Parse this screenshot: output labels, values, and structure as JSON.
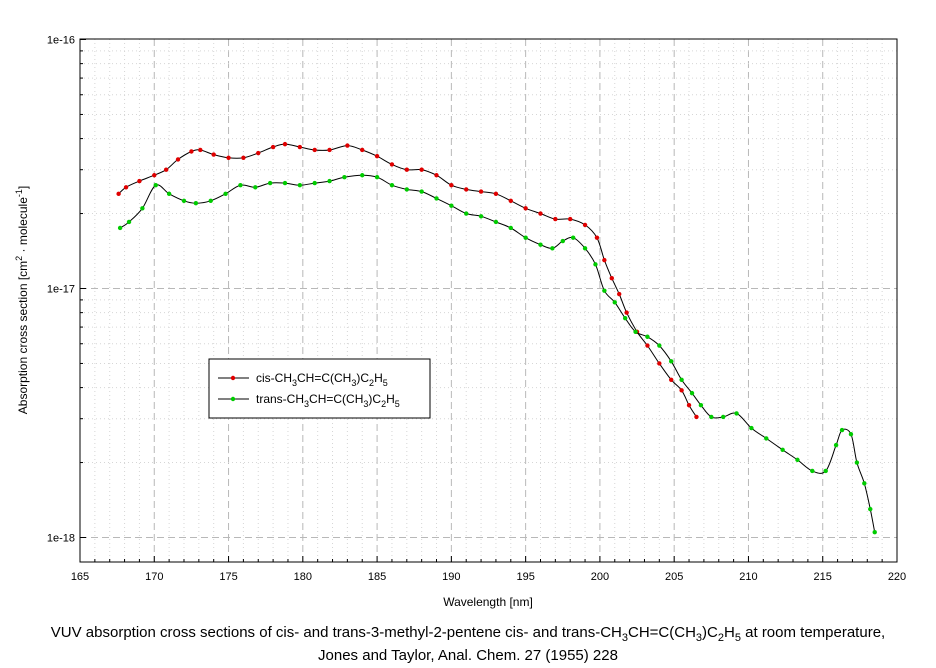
{
  "chart_data": {
    "type": "line",
    "xlabel": "Wavelength [nm]",
    "ylabel": "Absorption cross section [cm^2 · molecule^-1]",
    "x_scale": "linear",
    "y_scale": "log",
    "xlim": [
      165,
      220
    ],
    "ylim": [
      1e-18,
      1e-16
    ],
    "x_ticks": [
      165,
      170,
      175,
      180,
      185,
      190,
      195,
      200,
      205,
      210,
      215,
      220
    ],
    "y_tick_labels": [
      "1e-16",
      "1e-17",
      "1e-18"
    ],
    "grid": true,
    "legend_position": "center-left",
    "series": [
      {
        "name": "cis-CH3CH=C(CH3)C2H5",
        "color": "#e00000",
        "points": [
          [
            167.6,
            2.4e-17
          ],
          [
            168.1,
            2.55e-17
          ],
          [
            169.0,
            2.7e-17
          ],
          [
            170.0,
            2.85e-17
          ],
          [
            170.8,
            3e-17
          ],
          [
            171.6,
            3.3e-17
          ],
          [
            172.5,
            3.55e-17
          ],
          [
            173.1,
            3.6e-17
          ],
          [
            174.0,
            3.45e-17
          ],
          [
            175.0,
            3.35e-17
          ],
          [
            176.0,
            3.35e-17
          ],
          [
            177.0,
            3.5e-17
          ],
          [
            178.0,
            3.7e-17
          ],
          [
            178.8,
            3.8e-17
          ],
          [
            179.8,
            3.7e-17
          ],
          [
            180.8,
            3.6e-17
          ],
          [
            181.8,
            3.6e-17
          ],
          [
            183.0,
            3.75e-17
          ],
          [
            184.0,
            3.6e-17
          ],
          [
            185.0,
            3.4e-17
          ],
          [
            186.0,
            3.15e-17
          ],
          [
            187.0,
            3e-17
          ],
          [
            188.0,
            3e-17
          ],
          [
            189.0,
            2.85e-17
          ],
          [
            190.0,
            2.6e-17
          ],
          [
            191.0,
            2.5e-17
          ],
          [
            192.0,
            2.45e-17
          ],
          [
            193.0,
            2.4e-17
          ],
          [
            194.0,
            2.25e-17
          ],
          [
            195.0,
            2.1e-17
          ],
          [
            196.0,
            2e-17
          ],
          [
            197.0,
            1.9e-17
          ],
          [
            198.0,
            1.9e-17
          ],
          [
            199.0,
            1.8e-17
          ],
          [
            199.8,
            1.6e-17
          ],
          [
            200.3,
            1.3e-17
          ],
          [
            200.8,
            1.1e-17
          ],
          [
            201.3,
            9.5e-18
          ],
          [
            201.8,
            8e-18
          ],
          [
            202.5,
            6.7e-18
          ],
          [
            203.2,
            5.9e-18
          ],
          [
            204.0,
            5e-18
          ],
          [
            204.8,
            4.3e-18
          ],
          [
            205.5,
            3.9e-18
          ],
          [
            206.0,
            3.4e-18
          ],
          [
            206.5,
            3.05e-18
          ]
        ]
      },
      {
        "name": "trans-CH3CH=C(CH3)C2H5",
        "color": "#00cc00",
        "points": [
          [
            167.7,
            1.75e-17
          ],
          [
            168.3,
            1.85e-17
          ],
          [
            169.2,
            2.1e-17
          ],
          [
            170.1,
            2.6e-17
          ],
          [
            171.0,
            2.4e-17
          ],
          [
            172.0,
            2.25e-17
          ],
          [
            172.8,
            2.2e-17
          ],
          [
            173.8,
            2.25e-17
          ],
          [
            174.8,
            2.4e-17
          ],
          [
            175.8,
            2.6e-17
          ],
          [
            176.8,
            2.55e-17
          ],
          [
            177.8,
            2.65e-17
          ],
          [
            178.8,
            2.65e-17
          ],
          [
            179.8,
            2.6e-17
          ],
          [
            180.8,
            2.65e-17
          ],
          [
            181.8,
            2.7e-17
          ],
          [
            182.8,
            2.8e-17
          ],
          [
            184.0,
            2.85e-17
          ],
          [
            185.0,
            2.8e-17
          ],
          [
            186.0,
            2.6e-17
          ],
          [
            187.0,
            2.5e-17
          ],
          [
            188.0,
            2.45e-17
          ],
          [
            189.0,
            2.3e-17
          ],
          [
            190.0,
            2.15e-17
          ],
          [
            191.0,
            2e-17
          ],
          [
            192.0,
            1.95e-17
          ],
          [
            193.0,
            1.85e-17
          ],
          [
            194.0,
            1.75e-17
          ],
          [
            195.0,
            1.6e-17
          ],
          [
            196.0,
            1.5e-17
          ],
          [
            196.8,
            1.45e-17
          ],
          [
            197.5,
            1.55e-17
          ],
          [
            198.2,
            1.6e-17
          ],
          [
            199.0,
            1.45e-17
          ],
          [
            199.7,
            1.25e-17
          ],
          [
            200.3,
            9.8e-18
          ],
          [
            201.0,
            8.8e-18
          ],
          [
            201.7,
            7.6e-18
          ],
          [
            202.4,
            6.7e-18
          ],
          [
            203.2,
            6.4e-18
          ],
          [
            204.0,
            5.9e-18
          ],
          [
            204.8,
            5.1e-18
          ],
          [
            205.5,
            4.3e-18
          ],
          [
            206.2,
            3.8e-18
          ],
          [
            206.8,
            3.4e-18
          ],
          [
            207.5,
            3.05e-18
          ],
          [
            208.3,
            3.05e-18
          ],
          [
            209.2,
            3.15e-18
          ],
          [
            210.2,
            2.75e-18
          ],
          [
            211.2,
            2.5e-18
          ],
          [
            212.3,
            2.25e-18
          ],
          [
            213.3,
            2.05e-18
          ],
          [
            214.3,
            1.85e-18
          ],
          [
            215.2,
            1.85e-18
          ],
          [
            215.9,
            2.35e-18
          ],
          [
            216.3,
            2.7e-18
          ],
          [
            216.9,
            2.6e-18
          ],
          [
            217.3,
            2e-18
          ],
          [
            217.8,
            1.65e-18
          ],
          [
            218.2,
            1.3e-18
          ],
          [
            218.5,
            1.05e-18
          ]
        ]
      }
    ]
  },
  "caption": {
    "line1": "VUV absorption cross sections of cis- and trans-3-methyl-2-pentene cis- and trans-CH3CH=C(CH3)C2H5 at room temperature,",
    "line2": "Jones and Taylor, Anal. Chem. 27 (1955) 228"
  }
}
